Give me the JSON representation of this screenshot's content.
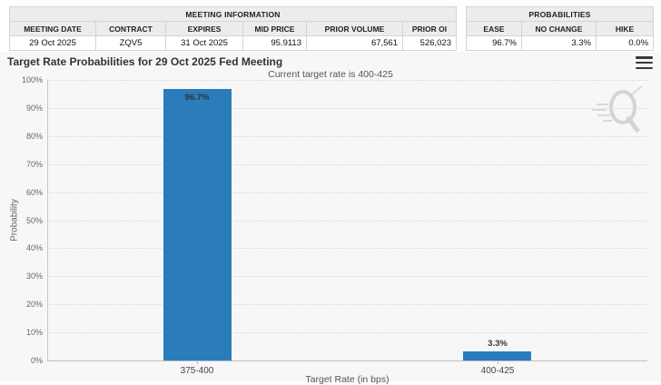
{
  "tables": {
    "meeting": {
      "title": "MEETING INFORMATION",
      "columns": [
        "MEETING DATE",
        "CONTRACT",
        "EXPIRES",
        "MID PRICE",
        "PRIOR VOLUME",
        "PRIOR OI"
      ],
      "values": [
        "29 Oct 2025",
        "ZQV5",
        "31 Oct 2025",
        "95.9113",
        "67,561",
        "526,023"
      ]
    },
    "probabilities": {
      "title": "PROBABILITIES",
      "columns": [
        "EASE",
        "NO CHANGE",
        "HIKE"
      ],
      "values": [
        "96.7%",
        "3.3%",
        "0.0%"
      ]
    }
  },
  "chart": {
    "title": "Target Rate Probabilities for 29 Oct 2025 Fed Meeting",
    "subtitle": "Current target rate is 400-425",
    "menu_icon": "hamburger-menu-icon",
    "watermark_letter": "Q"
  },
  "chart_data": {
    "type": "bar",
    "title": "Target Rate Probabilities for 29 Oct 2025 Fed Meeting",
    "subtitle": "Current target rate is 400-425",
    "categories": [
      "375-400",
      "400-425"
    ],
    "values": [
      96.7,
      3.3
    ],
    "value_labels": [
      "96.7%",
      "3.3%"
    ],
    "xlabel": "Target Rate (in bps)",
    "ylabel": "Probability",
    "ylim": [
      0,
      100
    ],
    "ytick_step": 10,
    "ytick_labels": [
      "0%",
      "10%",
      "20%",
      "30%",
      "40%",
      "50%",
      "60%",
      "70%",
      "80%",
      "90%",
      "100%"
    ],
    "grid": "horizontal-dotted",
    "legend": "none",
    "bar_color": "#2b7cba"
  },
  "colors": {
    "bar": "#2b7cba",
    "panel_bg": "#f7f7f7",
    "table_header_bg": "#ececec",
    "table_border": "#d4d4d4",
    "grid": "#d8d8d8",
    "axis": "#bdbdbd",
    "title_text": "#333333",
    "watermark": "#cfcfcf"
  }
}
